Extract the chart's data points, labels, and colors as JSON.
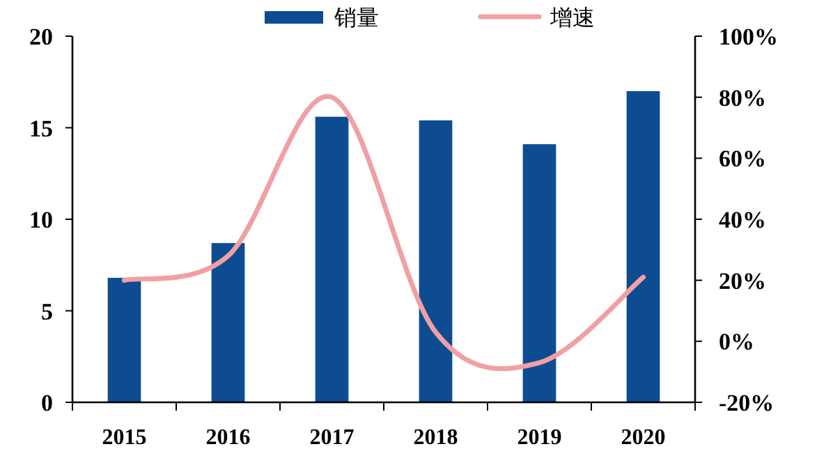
{
  "chart_data": {
    "type": "bar",
    "categories": [
      "2015",
      "2016",
      "2017",
      "2018",
      "2019",
      "2020"
    ],
    "series": [
      {
        "name": "销量",
        "color": "#0e4c92",
        "values": [
          6.8,
          8.7,
          15.6,
          15.4,
          14.1,
          17.0
        ]
      },
      {
        "name": "增速",
        "type": "line",
        "axis": "y2",
        "color": "#f0a0a4",
        "values": [
          20,
          28,
          80,
          3,
          -7,
          21
        ]
      }
    ],
    "ylim": [
      0,
      20
    ],
    "yticks": [
      0,
      5,
      10,
      15,
      20
    ],
    "y2lim": [
      -20,
      100
    ],
    "y2ticks": [
      {
        "value": -20,
        "label": "-20%"
      },
      {
        "value": 0,
        "label": "0%"
      },
      {
        "value": 20,
        "label": "20%"
      },
      {
        "value": 40,
        "label": "40%"
      },
      {
        "value": 60,
        "label": "60%"
      },
      {
        "value": 80,
        "label": "80%"
      },
      {
        "value": 100,
        "label": "100%"
      }
    ],
    "legend": "top",
    "grid": false
  }
}
